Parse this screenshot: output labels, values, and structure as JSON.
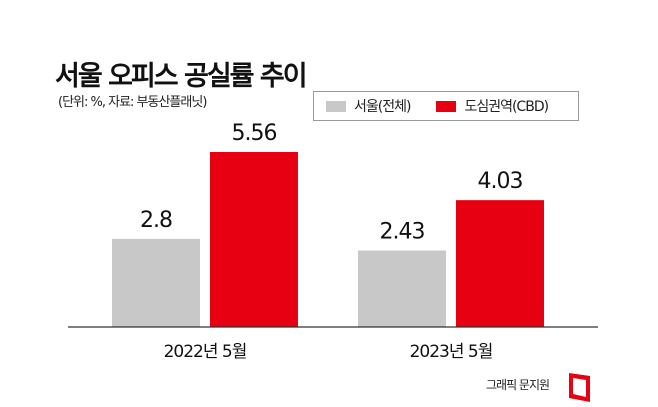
{
  "chart_data": {
    "type": "bar",
    "title": "서울 오피스 공실률 추이",
    "subtitle": "(단위: %, 자료: 부동산플래닛)",
    "categories": [
      "2022년 5월",
      "2023년 5월"
    ],
    "series": [
      {
        "name": "서울(전체)",
        "color": "#c8c8c8",
        "values": [
          2.8,
          2.43
        ],
        "labels": [
          "2.8",
          "2.43"
        ]
      },
      {
        "name": "도심권역(CBD)",
        "color": "#e60012",
        "values": [
          5.56,
          4.03
        ],
        "labels": [
          "5.56",
          "4.03"
        ]
      }
    ],
    "ylim": [
      0,
      5.56
    ],
    "legend": "top-right",
    "grid": false
  },
  "credit": "그래픽 문지원"
}
